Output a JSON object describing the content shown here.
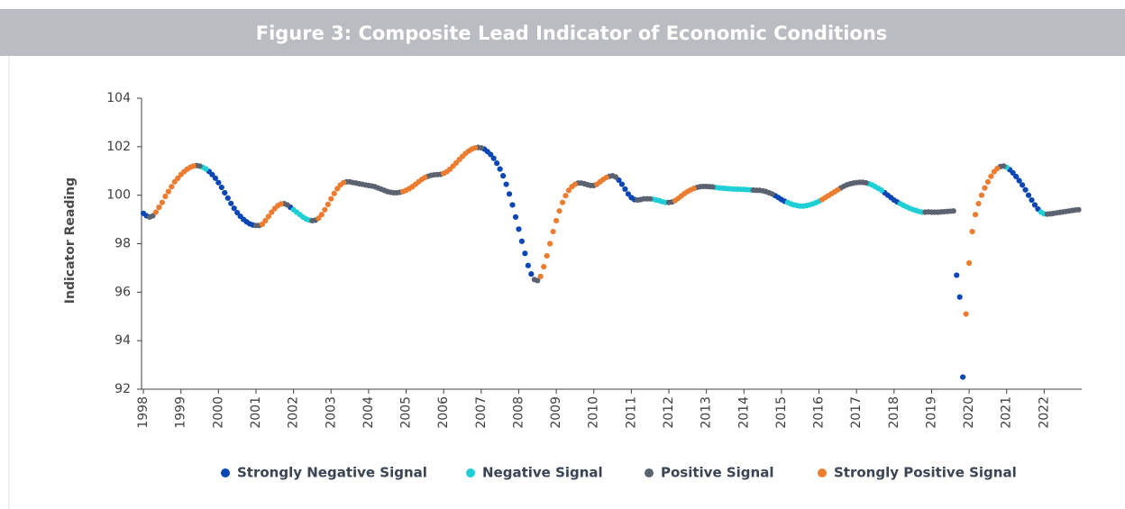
{
  "chart_data": {
    "type": "scatter",
    "title": "Figure 3: Composite Lead Indicator of Economic Conditions",
    "y_label": "Indicator Reading",
    "ylim": [
      92,
      104
    ],
    "yticks": [
      92,
      94,
      96,
      98,
      100,
      102,
      104
    ],
    "xlim": [
      1997.95,
      2023
    ],
    "xticks": [
      1998,
      1999,
      2000,
      2001,
      2002,
      2003,
      2004,
      2005,
      2006,
      2007,
      2008,
      2009,
      2010,
      2011,
      2012,
      2013,
      2014,
      2015,
      2016,
      2017,
      2018,
      2019,
      2020,
      2021,
      2022
    ],
    "series": [
      {
        "name": "Strongly Negative Signal",
        "color": "#0a47b5",
        "x": [
          1998.0,
          1998.083,
          1999.75,
          1999.833,
          1999.917,
          2000.0,
          2000.083,
          2000.167,
          2000.25,
          2000.333,
          2000.417,
          2000.5,
          2000.583,
          2000.667,
          2000.75,
          2000.833,
          2000.917,
          2001.917,
          2007.083,
          2007.167,
          2007.25,
          2007.333,
          2007.417,
          2007.5,
          2007.583,
          2007.667,
          2007.75,
          2007.833,
          2007.917,
          2008.0,
          2008.083,
          2008.167,
          2008.25,
          2008.333,
          2010.667,
          2010.75,
          2010.833,
          2010.917,
          2011.0,
          2011.083,
          2014.833,
          2014.917,
          2015.0,
          2015.083,
          2017.75,
          2017.833,
          2017.917,
          2018.0,
          2018.083,
          2019.667,
          2019.75,
          2019.833,
          2021.083,
          2021.167,
          2021.25,
          2021.333,
          2021.417,
          2021.5,
          2021.583,
          2021.667,
          2021.75,
          2021.833
        ],
        "values": [
          99.25,
          99.15,
          100.98,
          100.85,
          100.7,
          100.52,
          100.32,
          100.1,
          99.88,
          99.66,
          99.46,
          99.28,
          99.13,
          99.0,
          98.9,
          98.82,
          98.77,
          99.5,
          101.9,
          101.8,
          101.68,
          101.52,
          101.32,
          101.08,
          100.8,
          100.45,
          100.05,
          99.6,
          99.1,
          98.6,
          98.1,
          97.6,
          97.1,
          96.75,
          100.62,
          100.45,
          100.25,
          100.05,
          99.9,
          99.82,
          99.98,
          99.9,
          99.82,
          99.75,
          100.1,
          100.0,
          99.9,
          99.8,
          99.72,
          96.7,
          95.8,
          92.5,
          101.05,
          100.92,
          100.77,
          100.6,
          100.42,
          100.22,
          100.0,
          99.8,
          99.6,
          99.43
        ]
      },
      {
        "name": "Negative Signal",
        "color": "#1ecfd6",
        "x": [
          1999.583,
          1999.667,
          2002.0,
          2002.083,
          2002.167,
          2002.25,
          2002.333,
          2002.417,
          2011.583,
          2011.667,
          2011.75,
          2011.833,
          2011.917,
          2013.25,
          2013.333,
          2013.417,
          2013.5,
          2013.583,
          2013.667,
          2013.75,
          2013.833,
          2013.917,
          2014.0,
          2014.083,
          2014.167,
          2015.167,
          2015.25,
          2015.333,
          2015.417,
          2015.5,
          2015.583,
          2015.667,
          2015.75,
          2015.833,
          2015.917,
          2016.0,
          2017.333,
          2017.417,
          2017.5,
          2017.583,
          2017.667,
          2018.167,
          2018.25,
          2018.333,
          2018.417,
          2018.5,
          2018.583,
          2018.667,
          2018.75,
          2021.0,
          2021.917,
          2022.0
        ],
        "values": [
          101.15,
          101.08,
          99.4,
          99.3,
          99.2,
          99.1,
          99.02,
          98.97,
          99.83,
          99.8,
          99.77,
          99.73,
          99.7,
          100.32,
          100.3,
          100.29,
          100.28,
          100.27,
          100.26,
          100.25,
          100.25,
          100.24,
          100.24,
          100.23,
          100.22,
          99.7,
          99.64,
          99.6,
          99.57,
          99.55,
          99.55,
          99.57,
          99.6,
          99.64,
          99.69,
          99.75,
          100.47,
          100.42,
          100.35,
          100.28,
          100.2,
          99.65,
          99.58,
          99.52,
          99.46,
          99.41,
          99.37,
          99.33,
          99.3,
          101.15,
          99.3,
          99.23
        ]
      },
      {
        "name": "Positive Signal",
        "color": "#5c6370",
        "x": [
          1998.167,
          1998.25,
          1999.417,
          1999.5,
          2001.0,
          2001.083,
          2001.75,
          2001.833,
          2002.5,
          2002.583,
          2003.417,
          2003.5,
          2003.583,
          2003.667,
          2003.75,
          2003.833,
          2003.917,
          2004.0,
          2004.083,
          2004.167,
          2004.25,
          2004.333,
          2004.417,
          2004.5,
          2004.583,
          2004.667,
          2004.75,
          2004.833,
          2005.583,
          2005.667,
          2005.75,
          2005.833,
          2005.917,
          2006.917,
          2007.0,
          2008.417,
          2008.5,
          2009.583,
          2009.667,
          2009.75,
          2009.833,
          2009.917,
          2010.0,
          2010.417,
          2010.5,
          2010.583,
          2011.167,
          2011.25,
          2011.333,
          2011.417,
          2011.5,
          2012.0,
          2012.083,
          2012.75,
          2012.833,
          2012.917,
          2013.0,
          2013.083,
          2013.167,
          2014.25,
          2014.333,
          2014.417,
          2014.5,
          2014.583,
          2014.667,
          2014.75,
          2016.583,
          2016.667,
          2016.75,
          2016.833,
          2016.917,
          2017.0,
          2017.083,
          2017.167,
          2017.25,
          2018.833,
          2018.917,
          2019.0,
          2019.083,
          2019.167,
          2019.25,
          2019.333,
          2019.417,
          2019.5,
          2019.583,
          2020.833,
          2020.917,
          2022.083,
          2022.167,
          2022.25,
          2022.333,
          2022.417,
          2022.5,
          2022.583,
          2022.667,
          2022.75,
          2022.833,
          2022.917
        ],
        "values": [
          99.1,
          99.15,
          101.22,
          101.2,
          98.75,
          98.75,
          99.65,
          99.6,
          98.95,
          98.97,
          100.55,
          100.55,
          100.52,
          100.5,
          100.47,
          100.45,
          100.42,
          100.4,
          100.38,
          100.35,
          100.3,
          100.25,
          100.2,
          100.15,
          100.12,
          100.1,
          100.1,
          100.12,
          100.78,
          100.82,
          100.84,
          100.85,
          100.86,
          101.97,
          101.95,
          96.52,
          96.48,
          100.5,
          100.5,
          100.47,
          100.43,
          100.4,
          100.4,
          100.78,
          100.8,
          100.75,
          99.8,
          99.82,
          99.85,
          99.85,
          99.85,
          99.7,
          99.72,
          100.32,
          100.35,
          100.36,
          100.36,
          100.35,
          100.34,
          100.21,
          100.2,
          100.2,
          100.18,
          100.15,
          100.1,
          100.05,
          100.3,
          100.37,
          100.43,
          100.47,
          100.5,
          100.52,
          100.53,
          100.53,
          100.51,
          99.3,
          99.31,
          99.3,
          99.3,
          99.3,
          99.31,
          99.32,
          99.33,
          99.34,
          99.35,
          101.18,
          101.2,
          99.22,
          99.23,
          99.25,
          99.27,
          99.29,
          99.31,
          99.33,
          99.35,
          99.37,
          99.39,
          99.4
        ]
      },
      {
        "name": "Strongly Positive Signal",
        "color": "#ec7c30",
        "x": [
          1998.333,
          1998.417,
          1998.5,
          1998.583,
          1998.667,
          1998.75,
          1998.833,
          1998.917,
          1999.0,
          1999.083,
          1999.167,
          1999.25,
          1999.333,
          2001.167,
          2001.25,
          2001.333,
          2001.417,
          2001.5,
          2001.583,
          2001.667,
          2002.667,
          2002.75,
          2002.833,
          2002.917,
          2003.0,
          2003.083,
          2003.167,
          2003.25,
          2003.333,
          2004.917,
          2005.0,
          2005.083,
          2005.167,
          2005.25,
          2005.333,
          2005.417,
          2005.5,
          2006.0,
          2006.083,
          2006.167,
          2006.25,
          2006.333,
          2006.417,
          2006.5,
          2006.583,
          2006.667,
          2006.75,
          2006.833,
          2008.583,
          2008.667,
          2008.75,
          2008.833,
          2008.917,
          2009.0,
          2009.083,
          2009.167,
          2009.25,
          2009.333,
          2009.417,
          2009.5,
          2010.083,
          2010.167,
          2010.25,
          2010.333,
          2012.167,
          2012.25,
          2012.333,
          2012.417,
          2012.5,
          2012.583,
          2012.667,
          2016.083,
          2016.167,
          2016.25,
          2016.333,
          2016.417,
          2016.5,
          2019.917,
          2020.0,
          2020.083,
          2020.167,
          2020.25,
          2020.333,
          2020.417,
          2020.5,
          2020.583,
          2020.667,
          2020.75
        ],
        "values": [
          99.3,
          99.5,
          99.7,
          99.95,
          100.15,
          100.35,
          100.55,
          100.7,
          100.85,
          100.97,
          101.07,
          101.15,
          101.2,
          98.8,
          98.95,
          99.12,
          99.3,
          99.45,
          99.57,
          99.64,
          99.05,
          99.2,
          99.4,
          99.62,
          99.85,
          100.07,
          100.27,
          100.42,
          100.52,
          100.15,
          100.2,
          100.27,
          100.35,
          100.45,
          100.55,
          100.65,
          100.73,
          100.9,
          100.97,
          101.07,
          101.2,
          101.33,
          101.47,
          101.6,
          101.72,
          101.82,
          101.9,
          101.95,
          96.65,
          97.05,
          97.5,
          98.0,
          98.5,
          98.95,
          99.35,
          99.7,
          99.98,
          100.2,
          100.35,
          100.45,
          100.45,
          100.55,
          100.65,
          100.73,
          99.78,
          99.87,
          99.97,
          100.07,
          100.15,
          100.22,
          100.28,
          99.82,
          99.9,
          99.98,
          100.06,
          100.14,
          100.22,
          95.1,
          97.2,
          98.5,
          99.2,
          99.65,
          100.0,
          100.3,
          100.55,
          100.78,
          100.97,
          101.1
        ]
      }
    ]
  }
}
